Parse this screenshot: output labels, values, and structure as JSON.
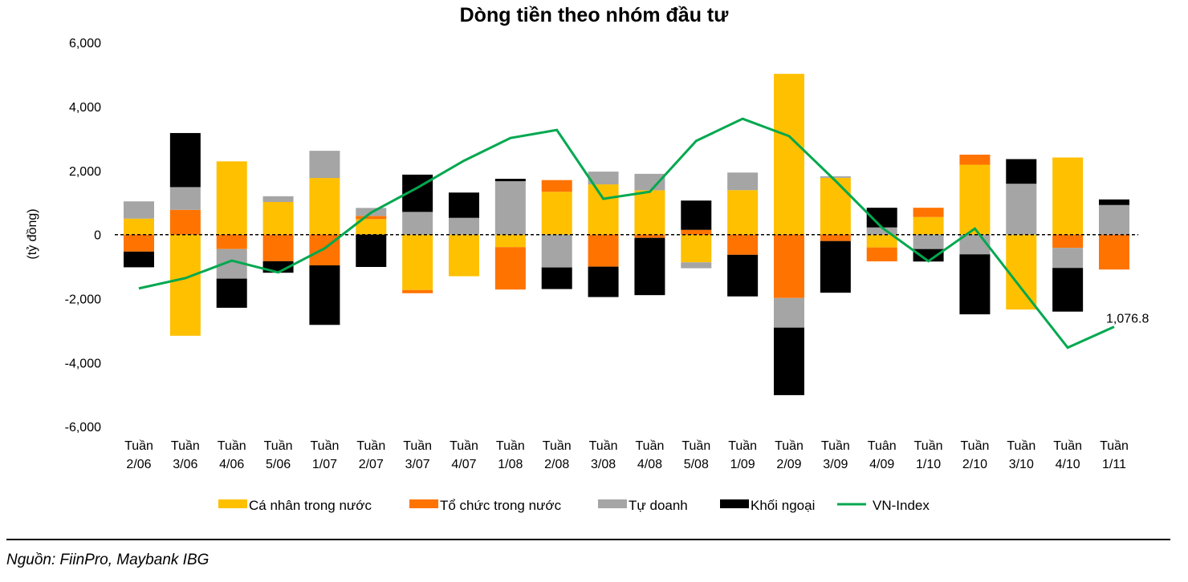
{
  "chart_data": {
    "type": "bar",
    "stacked": true,
    "title": "Dòng tiền theo nhóm đầu tư",
    "ylabel": "(tỷ đồng)",
    "xlabel": "",
    "ylim": [
      -6000,
      6000
    ],
    "yticks": [
      "6,000",
      "4,000",
      "2,000",
      "0",
      "-2,000",
      "-4,000",
      "-6,000"
    ],
    "ytick_values": [
      6000,
      4000,
      2000,
      0,
      -2000,
      -4000,
      -6000
    ],
    "grid": false,
    "zero_line": "dashed",
    "legend_position": "bottom",
    "categories": [
      [
        "Tuần",
        "2/06"
      ],
      [
        "Tuần",
        "3/06"
      ],
      [
        "Tuần",
        "4/06"
      ],
      [
        "Tuần",
        "5/06"
      ],
      [
        "Tuần",
        "1/07"
      ],
      [
        "Tuần",
        "2/07"
      ],
      [
        "Tuần",
        "3/07"
      ],
      [
        "Tuần",
        "4/07"
      ],
      [
        "Tuần",
        "1/08"
      ],
      [
        "Tuần",
        "2/08"
      ],
      [
        "Tuần",
        "3/08"
      ],
      [
        "Tuần",
        "4/08"
      ],
      [
        "Tuần",
        "5/08"
      ],
      [
        "Tuần",
        "1/09"
      ],
      [
        "Tuần",
        "2/09"
      ],
      [
        "Tuần",
        "3/09"
      ],
      [
        "Tuân",
        "4/09"
      ],
      [
        "Tuần",
        "1/10"
      ],
      [
        "Tuần",
        "2/10"
      ],
      [
        "Tuần",
        "3/10"
      ],
      [
        "Tuần",
        "4/10"
      ],
      [
        "Tuần",
        "1/11"
      ]
    ],
    "series": [
      {
        "name": "Cá nhân trong nước",
        "type": "bar",
        "color": "#FFC000",
        "values": [
          500,
          -3160,
          2290,
          1020,
          1770,
          485,
          -1730,
          -1300,
          -390,
          1340,
          1570,
          1385,
          -865,
          1390,
          5025,
          1775,
          -400,
          550,
          2185,
          -2340,
          2410,
          0
        ]
      },
      {
        "name": "Tổ chức trong nước",
        "type": "bar",
        "color": "#FF7300",
        "values": [
          -530,
          775,
          -450,
          -830,
          -960,
          100,
          -100,
          0,
          -1325,
          365,
          -1000,
          -100,
          150,
          -630,
          -1980,
          -200,
          -435,
          290,
          315,
          0,
          -415,
          -1090
        ]
      },
      {
        "name": "Tự doanh",
        "type": "bar",
        "color": "#A5A5A5",
        "values": [
          540,
          710,
          -925,
          180,
          850,
          250,
          710,
          525,
          1670,
          -1025,
          400,
          515,
          -185,
          550,
          -925,
          50,
          225,
          -450,
          -615,
          1590,
          -625,
          925
        ]
      },
      {
        "name": "Khối ngoại",
        "type": "bar",
        "color": "#000000",
        "values": [
          -490,
          1690,
          -910,
          -360,
          -1860,
          -1010,
          1165,
          790,
          75,
          -675,
          -950,
          -1790,
          915,
          -1300,
          -2110,
          -1615,
          615,
          -390,
          -1875,
          770,
          -1365,
          175
        ]
      },
      {
        "name": "VN-Index",
        "type": "line",
        "color": "#00A84F",
        "axis": "secondary (hidden); shown here on primary scale",
        "values": [
          -1680,
          -1360,
          -810,
          -1180,
          -430,
          690,
          1470,
          2310,
          3020,
          3270,
          1120,
          1340,
          2930,
          3620,
          3080,
          1680,
          220,
          -830,
          190,
          -1680,
          -3530,
          -2880
        ],
        "last_label": "1,076.8"
      }
    ]
  },
  "source": "Nguồn: FiinPro, Maybank IBG"
}
